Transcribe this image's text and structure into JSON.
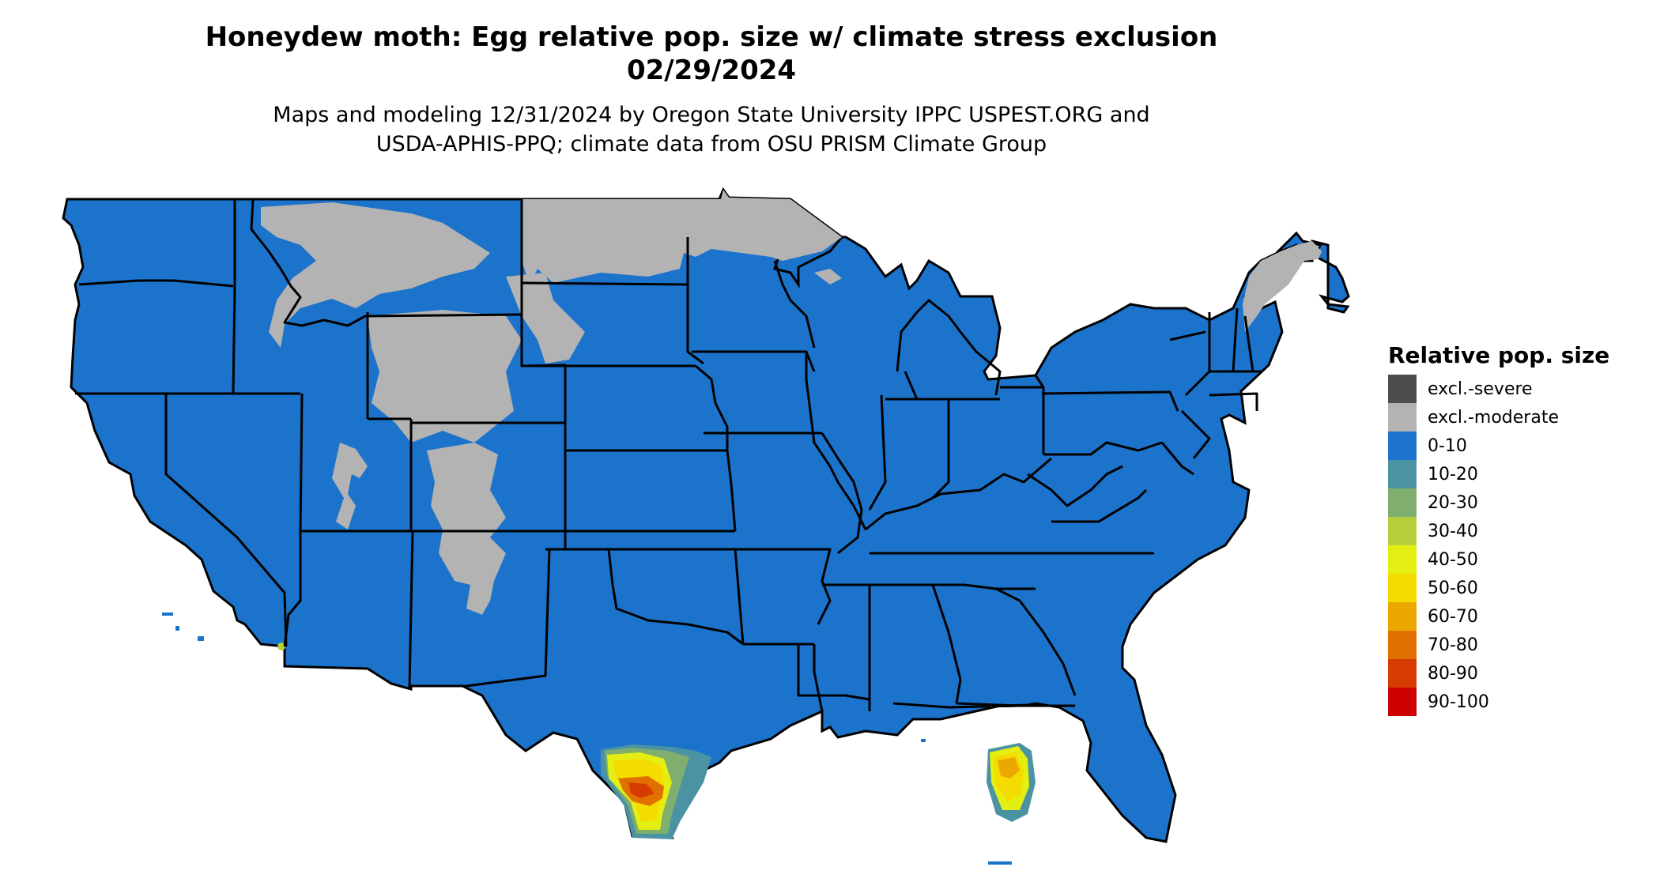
{
  "title": {
    "line1": "Honeydew moth: Egg relative pop. size w/ climate stress exclusion",
    "line2": "02/29/2024"
  },
  "subtitle": {
    "line1": "Maps and modeling 12/31/2024 by Oregon State University IPPC USPEST.ORG and",
    "line2": "USDA-APHIS-PPQ; climate data from OSU PRISM Climate Group"
  },
  "legend": {
    "title": "Relative pop. size",
    "items": [
      {
        "label": "excl.-severe",
        "color": "#4d4d4d"
      },
      {
        "label": "excl.-moderate",
        "color": "#b3b3b3"
      },
      {
        "label": "0-10",
        "color": "#1c73cc"
      },
      {
        "label": "10-20",
        "color": "#4b93a3"
      },
      {
        "label": "20-30",
        "color": "#7fae6e"
      },
      {
        "label": "30-40",
        "color": "#b6cf3c"
      },
      {
        "label": "40-50",
        "color": "#e3ef12"
      },
      {
        "label": "50-60",
        "color": "#f5dc00"
      },
      {
        "label": "60-70",
        "color": "#eca800"
      },
      {
        "label": "70-80",
        "color": "#e27000"
      },
      {
        "label": "80-90",
        "color": "#d63c00"
      },
      {
        "label": "90-100",
        "color": "#cc0000"
      }
    ]
  }
}
